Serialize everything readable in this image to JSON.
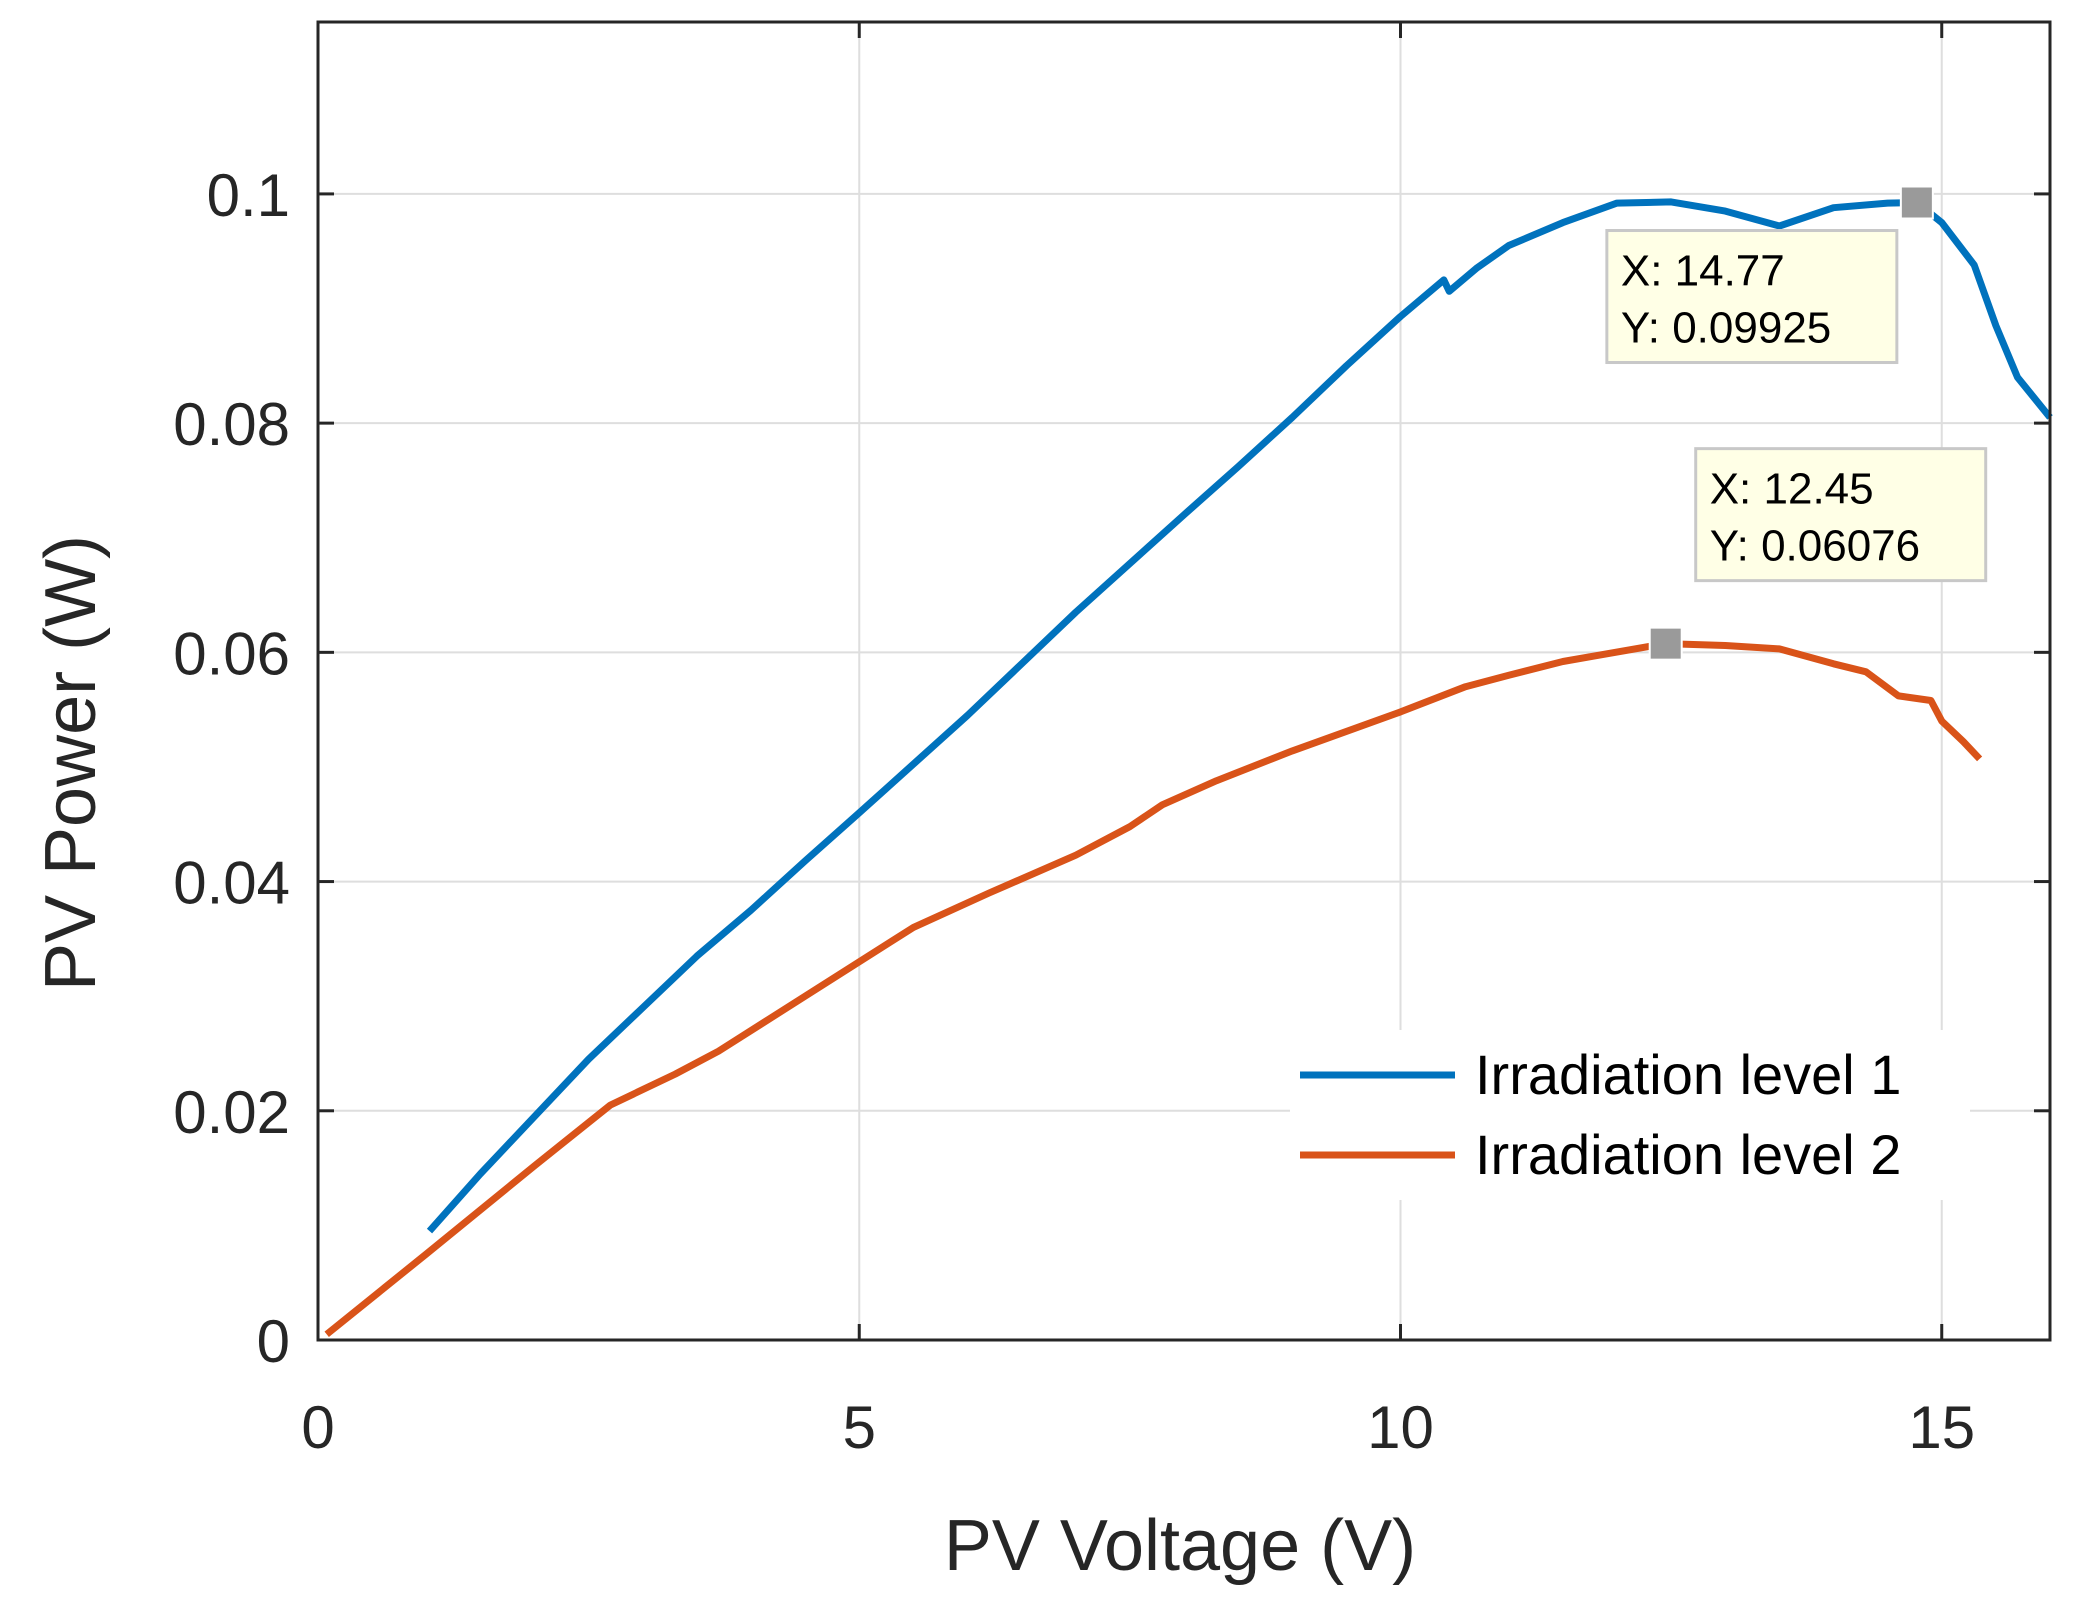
{
  "chart_data": {
    "type": "line",
    "xlabel": "PV Voltage (V)",
    "ylabel": "PV Power (W)",
    "xlim": [
      0,
      16
    ],
    "ylim": [
      0,
      0.115
    ],
    "xticks": [
      0,
      5,
      10,
      15
    ],
    "xtick_labels": [
      "0",
      "5",
      "10",
      "15"
    ],
    "yticks": [
      0,
      0.02,
      0.04,
      0.06,
      0.08,
      0.1
    ],
    "ytick_labels": [
      "0",
      "0.02",
      "0.04",
      "0.06",
      "0.08",
      "0.1"
    ],
    "grid": true,
    "legend_position": "bottom-right",
    "series": [
      {
        "name": "Irradiation level 1",
        "color": "#0072BD",
        "points": [
          [
            1.03,
            0.0095
          ],
          [
            1.5,
            0.0145
          ],
          [
            2.0,
            0.0195
          ],
          [
            2.5,
            0.0245
          ],
          [
            3.0,
            0.029
          ],
          [
            3.5,
            0.0335
          ],
          [
            4.0,
            0.0375
          ],
          [
            4.5,
            0.0418
          ],
          [
            5.0,
            0.046
          ],
          [
            6.0,
            0.0545
          ],
          [
            7.0,
            0.0635
          ],
          [
            8.0,
            0.072
          ],
          [
            8.5,
            0.0762
          ],
          [
            9.0,
            0.0805
          ],
          [
            9.5,
            0.085
          ],
          [
            10.0,
            0.0893
          ],
          [
            10.4,
            0.0925
          ],
          [
            10.45,
            0.0915
          ],
          [
            10.7,
            0.0935
          ],
          [
            11.0,
            0.0955
          ],
          [
            11.5,
            0.0975
          ],
          [
            12.0,
            0.0992
          ],
          [
            12.5,
            0.0993
          ],
          [
            13.0,
            0.0985
          ],
          [
            13.5,
            0.0972
          ],
          [
            14.0,
            0.0988
          ],
          [
            14.5,
            0.0992
          ],
          [
            14.77,
            0.09925
          ],
          [
            15.0,
            0.0975
          ],
          [
            15.3,
            0.0938
          ],
          [
            15.5,
            0.0885
          ],
          [
            15.7,
            0.084
          ],
          [
            16.0,
            0.0805
          ]
        ]
      },
      {
        "name": "Irradiation level 2",
        "color": "#D95319",
        "points": [
          [
            0.08,
            0.0005
          ],
          [
            1.0,
            0.0075
          ],
          [
            2.0,
            0.0152
          ],
          [
            2.7,
            0.0205
          ],
          [
            3.3,
            0.0232
          ],
          [
            3.7,
            0.0252
          ],
          [
            4.5,
            0.03
          ],
          [
            5.5,
            0.036
          ],
          [
            6.2,
            0.039
          ],
          [
            7.0,
            0.0423
          ],
          [
            7.5,
            0.0448
          ],
          [
            7.8,
            0.0467
          ],
          [
            8.3,
            0.0488
          ],
          [
            9.0,
            0.0514
          ],
          [
            10.0,
            0.0548
          ],
          [
            10.6,
            0.057
          ],
          [
            11.0,
            0.058
          ],
          [
            11.5,
            0.0592
          ],
          [
            11.8,
            0.0597
          ],
          [
            12.45,
            0.06076
          ],
          [
            13.0,
            0.0606
          ],
          [
            13.5,
            0.0603
          ],
          [
            14.0,
            0.059
          ],
          [
            14.3,
            0.0583
          ],
          [
            14.6,
            0.0562
          ],
          [
            14.9,
            0.0558
          ],
          [
            15.0,
            0.054
          ],
          [
            15.2,
            0.0522
          ],
          [
            15.35,
            0.0507
          ]
        ]
      }
    ],
    "annotations": [
      {
        "x": 14.77,
        "y": 0.09925,
        "label_x": "X: 14.77",
        "label_y": "Y: 0.09925"
      },
      {
        "x": 12.45,
        "y": 0.06076,
        "label_x": "X: 12.45",
        "label_y": "Y: 0.06076"
      }
    ]
  }
}
